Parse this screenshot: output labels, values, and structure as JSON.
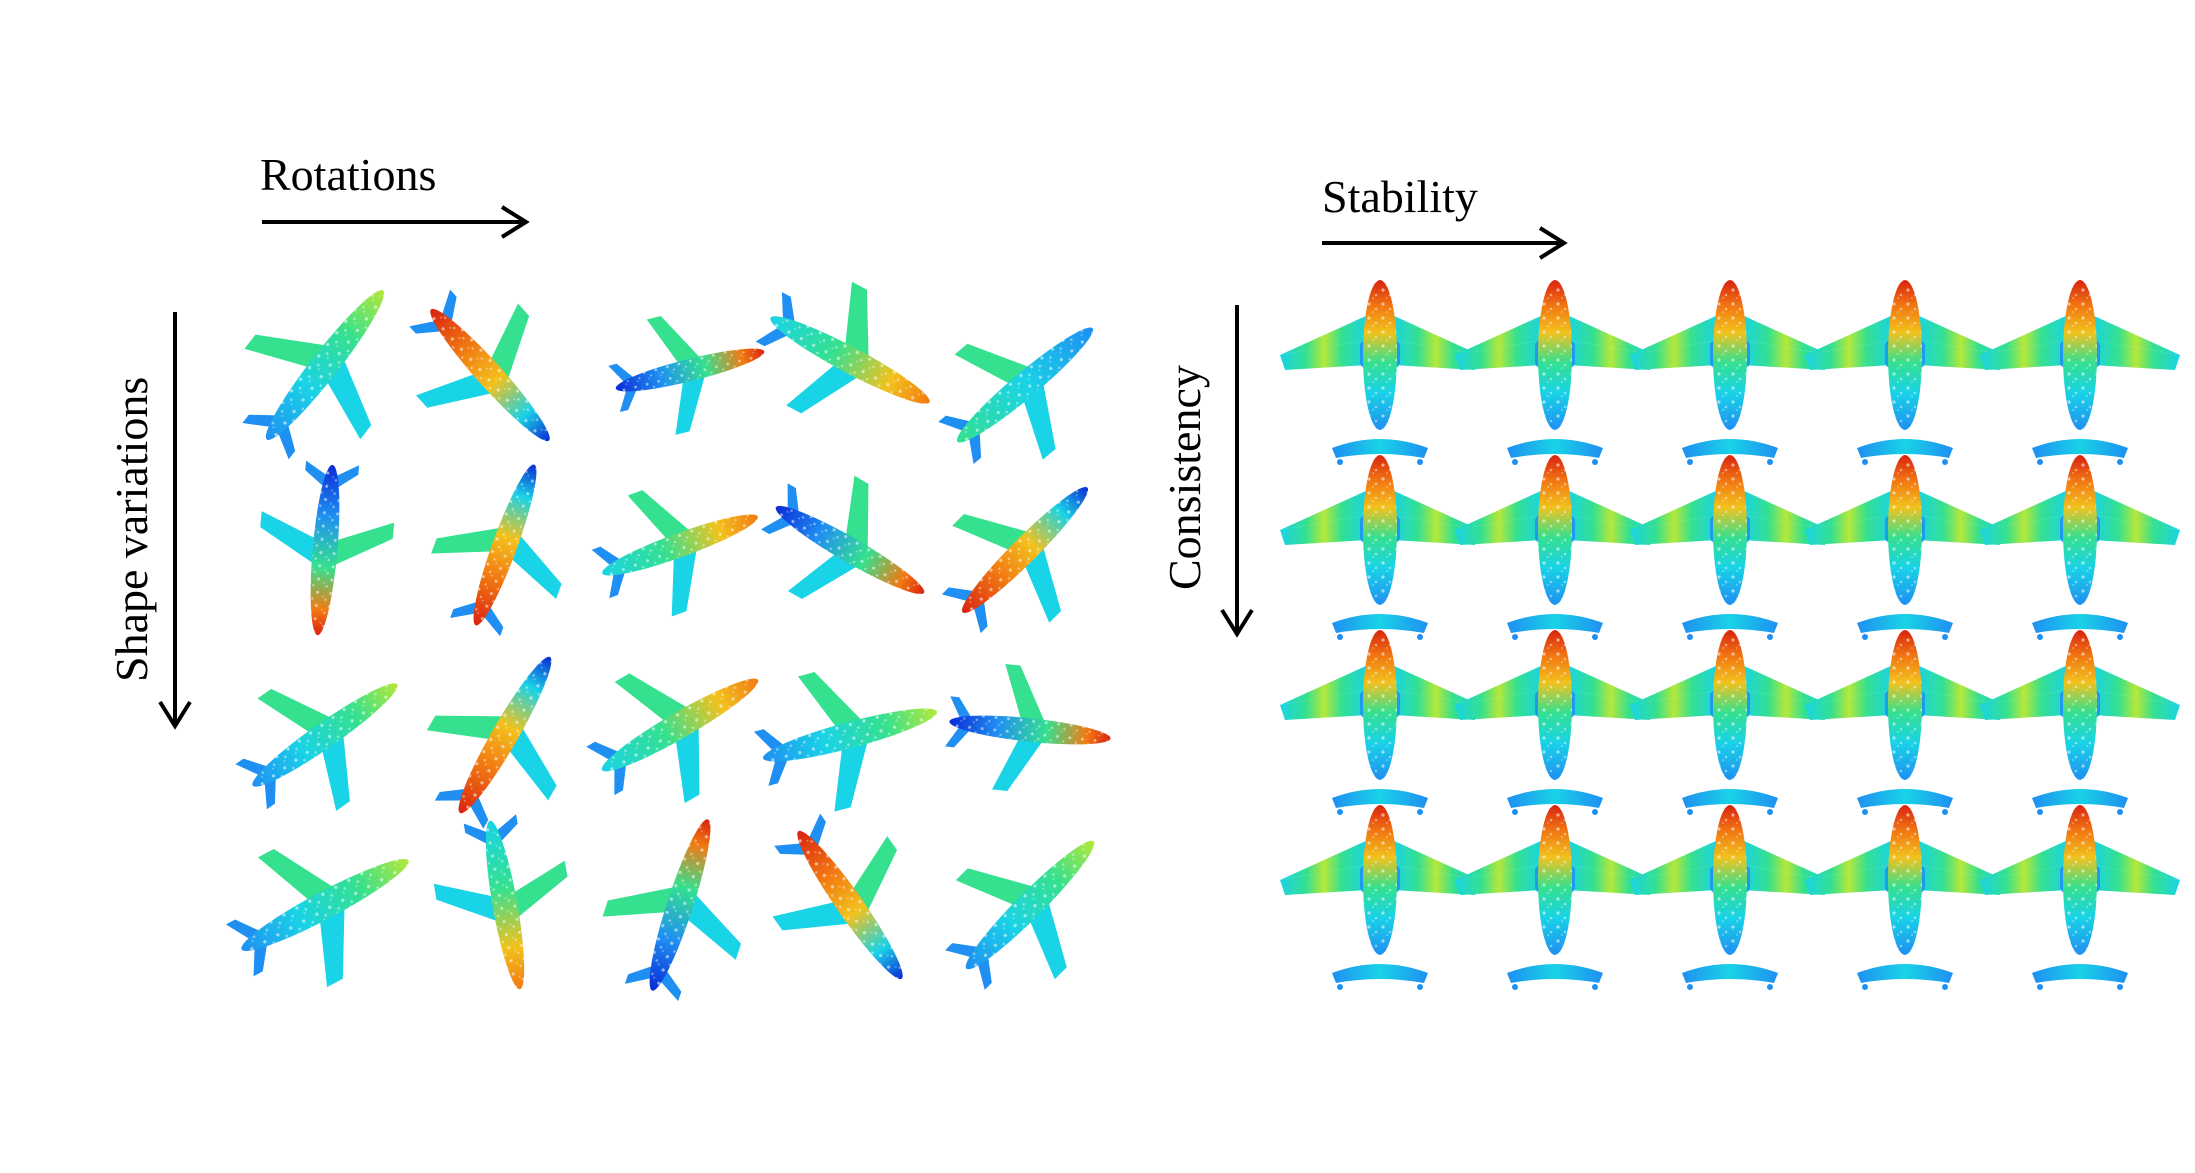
{
  "left_panel": {
    "x_label": "Rotations",
    "y_label": "Shape variations",
    "rows": 4,
    "cols": 5
  },
  "right_panel": {
    "x_label": "Stability",
    "y_label": "Consistency",
    "rows": 4,
    "cols": 5
  },
  "colormap": [
    "#0a2bd6",
    "#1f8ff2",
    "#19d3e6",
    "#35e08f",
    "#b5e83a",
    "#f2c21d",
    "#f27a12",
    "#d92310"
  ]
}
